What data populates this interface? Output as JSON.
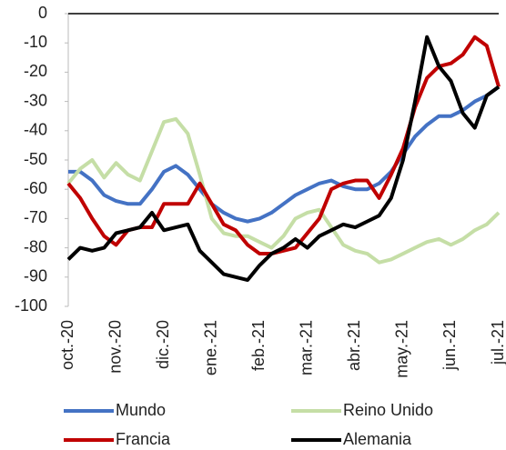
{
  "chart_data": {
    "type": "line",
    "categories": [
      "oct.-20",
      null,
      null,
      null,
      "nov.-20",
      null,
      null,
      null,
      "dic.-20",
      null,
      null,
      null,
      "ene.-21",
      null,
      null,
      null,
      "feb.-21",
      null,
      null,
      null,
      "mar.-21",
      null,
      null,
      null,
      "abr.-21",
      null,
      null,
      null,
      "may.-21",
      null,
      null,
      null,
      "jun.-21",
      null,
      null,
      null,
      "jul.-21"
    ],
    "series": [
      {
        "name": "Mundo",
        "color": "#4472c4",
        "values": [
          -54,
          -54,
          -57,
          -62,
          -64,
          -65,
          -65,
          -60,
          -54,
          -52,
          -55,
          -60,
          -65,
          -68,
          -70,
          -71,
          -70,
          -68,
          -65,
          -62,
          -60,
          -58,
          -57,
          -59,
          -60,
          -60,
          -58,
          -54,
          -48,
          -42,
          -38,
          -35,
          -35,
          -33,
          -30,
          -28,
          -25
        ]
      },
      {
        "name": "Reino Unido",
        "color": "#c5dea6",
        "values": [
          -58,
          -53,
          -50,
          -56,
          -51,
          -55,
          -57,
          -47,
          -37,
          -36,
          -41,
          -55,
          -70,
          -75,
          -76,
          -76,
          -78,
          -80,
          -76,
          -70,
          -68,
          -67,
          -73,
          -79,
          -81,
          -82,
          -85,
          -84,
          -82,
          -80,
          -78,
          -77,
          -79,
          -77,
          -74,
          -72,
          -68
        ]
      },
      {
        "name": "Francia",
        "color": "#c00000",
        "values": [
          -58,
          -63,
          -70,
          -76,
          -79,
          -74,
          -73,
          -73,
          -65,
          -65,
          -65,
          -58,
          -65,
          -72,
          -74,
          -79,
          -82,
          -82,
          -81,
          -80,
          -75,
          -70,
          -60,
          -58,
          -57,
          -57,
          -63,
          -55,
          -46,
          -32,
          -22,
          -18,
          -17,
          -14,
          -8,
          -11,
          -25
        ]
      },
      {
        "name": "Alemania",
        "color": "#000000",
        "values": [
          -84,
          -80,
          -81,
          -80,
          -75,
          -74,
          -73,
          -68,
          -74,
          -73,
          -72,
          -81,
          -85,
          -89,
          -90,
          -91,
          -86,
          -82,
          -80,
          -77,
          -80,
          -76,
          -74,
          -72,
          -73,
          -71,
          -69,
          -63,
          -50,
          -30,
          -8,
          -18,
          -23,
          -34,
          -39,
          -28,
          -25
        ]
      }
    ],
    "ylim": [
      -100,
      0
    ],
    "yticks": [
      0,
      -10,
      -20,
      -30,
      -40,
      -50,
      -60,
      -70,
      -80,
      -90,
      -100
    ]
  }
}
